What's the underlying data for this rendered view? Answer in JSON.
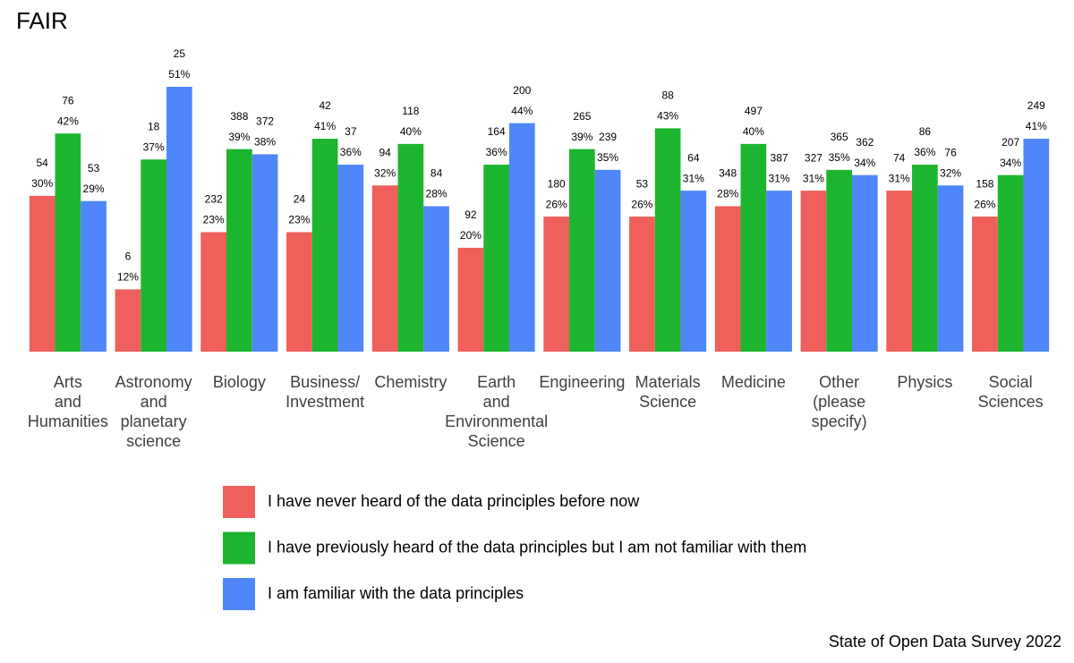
{
  "chart_data": {
    "type": "bar",
    "title": "FAIR",
    "caption": "State of Open Data Survey 2022",
    "categories": [
      [
        "Arts",
        "and",
        "Humanities"
      ],
      [
        "Astronomy",
        "and",
        "planetary",
        "science"
      ],
      [
        "Biology"
      ],
      [
        "Business/",
        "Investment"
      ],
      [
        "Chemistry"
      ],
      [
        "Earth",
        "and",
        "Environmental",
        "Science"
      ],
      [
        "Engineering"
      ],
      [
        "Materials",
        "Science"
      ],
      [
        "Medicine"
      ],
      [
        "Other",
        "(please",
        "specify)"
      ],
      [
        "Physics"
      ],
      [
        "Social",
        "Sciences"
      ]
    ],
    "series": [
      {
        "name": "I have never heard of the data principles before now",
        "color": "#ef5f5b",
        "values": [
          30,
          12,
          23,
          23,
          32,
          20,
          26,
          26,
          28,
          31,
          31,
          26
        ],
        "value_labels": [
          "30%",
          "12%",
          "23%",
          "23%",
          "32%",
          "20%",
          "26%",
          "26%",
          "28%",
          "31%",
          "31%",
          "26%"
        ],
        "counts": [
          54,
          6,
          232,
          24,
          94,
          92,
          180,
          53,
          348,
          327,
          74,
          158
        ]
      },
      {
        "name": "I have previously heard of the data principles but I am not familiar with them",
        "color": "#1db52f",
        "values": [
          42,
          37,
          39,
          41,
          40,
          36,
          39,
          43,
          40,
          35,
          36,
          34
        ],
        "value_labels": [
          "42%",
          "37%",
          "39%",
          "41%",
          "40%",
          "36%",
          "39%",
          "43%",
          "40%",
          "35%",
          "36%",
          "34%"
        ],
        "counts": [
          76,
          18,
          388,
          42,
          118,
          164,
          265,
          88,
          497,
          365,
          86,
          207
        ]
      },
      {
        "name": "I am familiar with the data principles",
        "color": "#4f87fa",
        "values": [
          29,
          51,
          38,
          36,
          28,
          44,
          35,
          31,
          31,
          34,
          32,
          41
        ],
        "value_labels": [
          "29%",
          "51%",
          "38%",
          "36%",
          "28%",
          "44%",
          "35%",
          "31%",
          "31%",
          "34%",
          "32%",
          "41%"
        ],
        "counts": [
          53,
          25,
          372,
          37,
          84,
          200,
          239,
          64,
          387,
          362,
          76,
          249
        ]
      }
    ]
  }
}
